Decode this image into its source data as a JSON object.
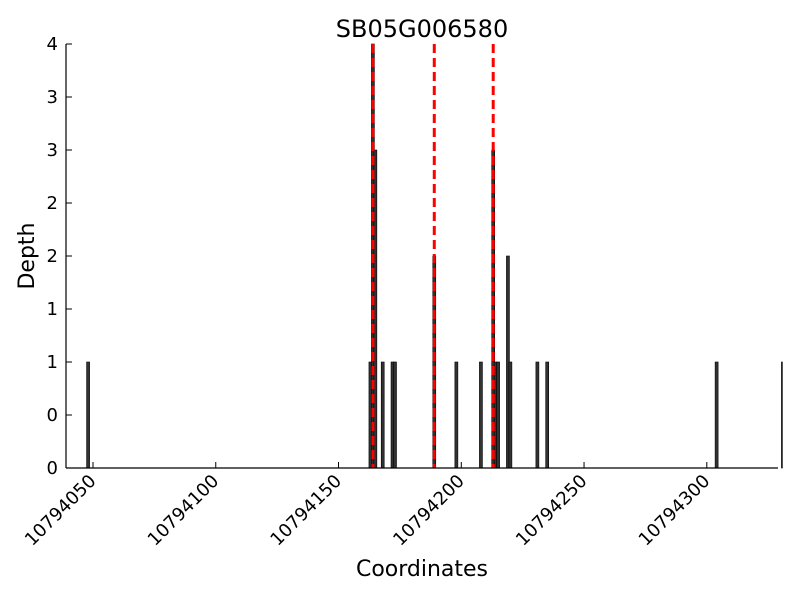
{
  "chart_data": {
    "type": "bar",
    "title": "SB05G006580",
    "xlabel": "Coordinates",
    "ylabel": "Depth",
    "xlim": [
      10794039,
      10794329
    ],
    "ylim": [
      0,
      4
    ],
    "x_ticks": [
      10794050,
      10794100,
      10794150,
      10794200,
      10794250,
      10794300
    ],
    "y_tick_values": [
      0,
      0.5,
      1,
      1.5,
      2,
      2.5,
      3,
      3.5,
      4
    ],
    "y_tick_labels": [
      "0",
      "0",
      "1",
      "1",
      "2",
      "2",
      "3",
      "3",
      "4"
    ],
    "grid": false,
    "bar_color": "#333333",
    "marker_color": "#ff0000",
    "bars": [
      {
        "x": 10794048,
        "depth": 1
      },
      {
        "x": 10794163,
        "depth": 1
      },
      {
        "x": 10794164,
        "depth": 4
      },
      {
        "x": 10794165,
        "depth": 3
      },
      {
        "x": 10794168,
        "depth": 1
      },
      {
        "x": 10794172,
        "depth": 1
      },
      {
        "x": 10794173,
        "depth": 1
      },
      {
        "x": 10794189,
        "depth": 2
      },
      {
        "x": 10794198,
        "depth": 1
      },
      {
        "x": 10794208,
        "depth": 1
      },
      {
        "x": 10794213,
        "depth": 3
      },
      {
        "x": 10794214,
        "depth": 1
      },
      {
        "x": 10794215,
        "depth": 1
      },
      {
        "x": 10794219,
        "depth": 2
      },
      {
        "x": 10794220,
        "depth": 1
      },
      {
        "x": 10794231,
        "depth": 1
      },
      {
        "x": 10794235,
        "depth": 1
      },
      {
        "x": 10794304,
        "depth": 1
      },
      {
        "x": 10794331,
        "depth": 1
      }
    ],
    "markers": [
      10794164,
      10794189,
      10794213
    ]
  }
}
